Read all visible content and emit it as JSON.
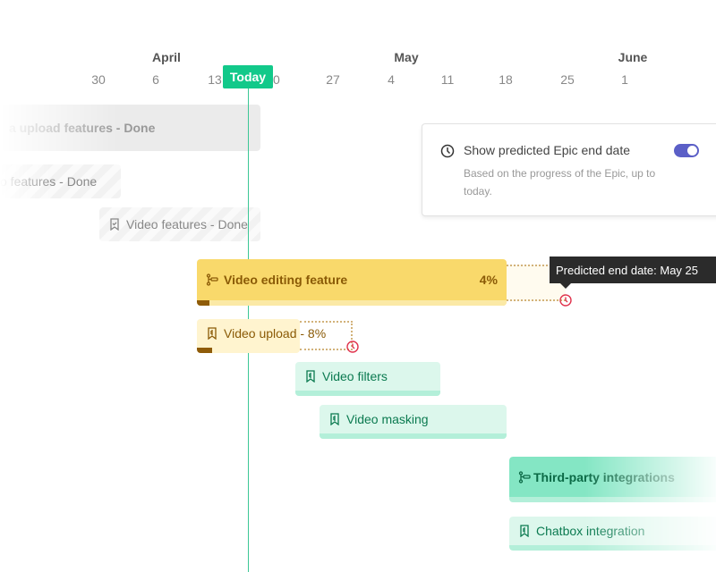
{
  "timeline": {
    "months": [
      {
        "label": "April"
      },
      {
        "label": "May"
      },
      {
        "label": "June"
      }
    ],
    "ticks": [
      "30",
      "6",
      "13",
      "20",
      "27",
      "4",
      "11",
      "18",
      "25",
      "1"
    ],
    "today_label": "Today"
  },
  "bars": {
    "media_upload": "a upload features - Done",
    "audio": "o features - Done",
    "video_features": "Video features - Done",
    "video_editing": {
      "label": "Video editing feature",
      "percent": "4%",
      "progress": 4
    },
    "video_upload": {
      "label": "Video upload - 8%",
      "progress": 8
    },
    "video_filters": "Video filters",
    "video_masking": "Video masking",
    "third_party": "Third-party integrations",
    "chatbox": "Chatbox integration"
  },
  "panel": {
    "title": "Show predicted Epic end date",
    "subtitle": "Based on the progress of the Epic, up to today.",
    "toggle_on": true
  },
  "tooltip": "Predicted end date: May 25",
  "colors": {
    "today": "#12c98a",
    "toggle": "#5b5fc7",
    "epic_in_progress": "#f9d96b",
    "todo": "#dcf7ec",
    "warning": "#e0334d"
  }
}
